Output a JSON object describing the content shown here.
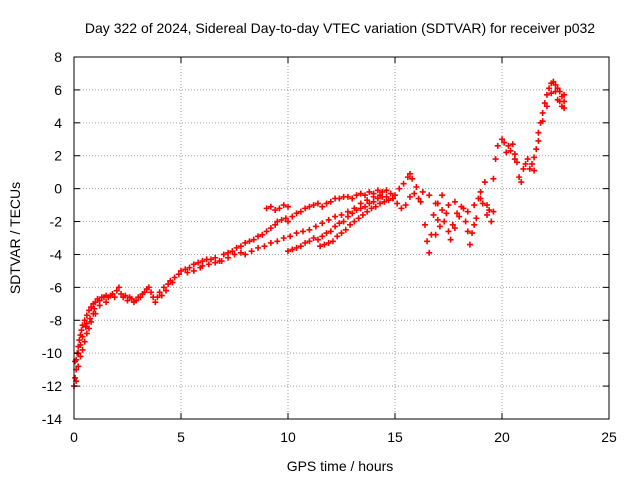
{
  "chart_data": {
    "type": "scatter",
    "title": "Day 322 of 2024, Sidereal Day-to-day VTEC variation (SDTVAR) for receiver p032",
    "xlabel": "GPS time / hours",
    "ylabel": "SDTVAR / TECUs",
    "xlim": [
      0,
      25
    ],
    "ylim": [
      -14,
      8
    ],
    "xticks": [
      0,
      5,
      10,
      15,
      20,
      25
    ],
    "yticks": [
      -14,
      -12,
      -10,
      -8,
      -6,
      -4,
      -2,
      0,
      2,
      4,
      6,
      8
    ],
    "grid": true,
    "legend": "none",
    "marker": "+",
    "series": [
      {
        "color": "#ff0000",
        "points": [
          [
            0.0,
            -12.0
          ],
          [
            0.05,
            -11.5
          ],
          [
            0.1,
            -11.0
          ],
          [
            0.1,
            -10.4
          ],
          [
            0.15,
            -10.0
          ],
          [
            0.2,
            -9.6
          ],
          [
            0.2,
            -10.8
          ],
          [
            0.25,
            -9.2
          ],
          [
            0.3,
            -8.9
          ],
          [
            0.3,
            -10.2
          ],
          [
            0.35,
            -8.6
          ],
          [
            0.4,
            -8.3
          ],
          [
            0.4,
            -9.8
          ],
          [
            0.5,
            -8.0
          ],
          [
            0.5,
            -9.3
          ],
          [
            0.6,
            -7.7
          ],
          [
            0.6,
            -8.8
          ],
          [
            0.7,
            -7.4
          ],
          [
            0.7,
            -8.5
          ],
          [
            0.8,
            -7.2
          ],
          [
            0.8,
            -8.1
          ],
          [
            0.9,
            -7.0
          ],
          [
            1.0,
            -6.9
          ],
          [
            1.0,
            -7.6
          ],
          [
            1.1,
            -6.7
          ],
          [
            1.2,
            -6.8
          ],
          [
            1.3,
            -6.6
          ],
          [
            1.4,
            -6.6
          ],
          [
            1.5,
            -6.5
          ],
          [
            1.6,
            -6.6
          ],
          [
            1.7,
            -6.5
          ],
          [
            1.8,
            -6.4
          ],
          [
            1.9,
            -6.6
          ],
          [
            2.0,
            -6.2
          ],
          [
            2.1,
            -6.0
          ],
          [
            2.2,
            -6.4
          ],
          [
            2.3,
            -6.6
          ],
          [
            2.4,
            -6.5
          ],
          [
            2.5,
            -6.8
          ],
          [
            2.7,
            -6.7
          ],
          [
            2.9,
            -6.8
          ],
          [
            3.0,
            -6.6
          ],
          [
            3.2,
            -6.4
          ],
          [
            3.4,
            -6.1
          ],
          [
            3.5,
            -6.0
          ],
          [
            3.6,
            -6.3
          ],
          [
            3.7,
            -6.6
          ],
          [
            3.8,
            -6.9
          ],
          [
            3.9,
            -6.6
          ],
          [
            4.0,
            -6.3
          ],
          [
            4.2,
            -6.0
          ],
          [
            4.4,
            -5.8
          ],
          [
            4.5,
            -5.6
          ],
          [
            4.7,
            -5.4
          ],
          [
            4.9,
            -5.2
          ],
          [
            5.0,
            -5.0
          ],
          [
            5.2,
            -4.9
          ],
          [
            5.4,
            -4.8
          ],
          [
            5.6,
            -4.6
          ],
          [
            5.8,
            -4.5
          ],
          [
            6.0,
            -4.4
          ],
          [
            6.2,
            -4.3
          ],
          [
            6.4,
            -4.3
          ],
          [
            6.6,
            -4.2
          ],
          [
            6.8,
            -4.4
          ],
          [
            7.0,
            -4.0
          ],
          [
            7.2,
            -3.9
          ],
          [
            7.4,
            -3.8
          ],
          [
            7.6,
            -3.6
          ],
          [
            7.8,
            -3.5
          ],
          [
            8.0,
            -3.3
          ],
          [
            8.2,
            -3.2
          ],
          [
            8.4,
            -3.1
          ],
          [
            8.6,
            -2.9
          ],
          [
            8.8,
            -2.8
          ],
          [
            9.0,
            -2.6
          ],
          [
            9.2,
            -2.4
          ],
          [
            9.4,
            -2.2
          ],
          [
            9.5,
            -2.0
          ],
          [
            9.7,
            -1.9
          ],
          [
            9.9,
            -1.8
          ],
          [
            10.0,
            -2.0
          ],
          [
            10.2,
            -1.7
          ],
          [
            10.4,
            -1.5
          ],
          [
            10.6,
            -1.4
          ],
          [
            10.8,
            -1.2
          ],
          [
            11.0,
            -1.1
          ],
          [
            11.2,
            -1.0
          ],
          [
            11.4,
            -0.9
          ],
          [
            11.6,
            -1.1
          ],
          [
            11.8,
            -0.9
          ],
          [
            12.0,
            -0.8
          ],
          [
            12.2,
            -0.6
          ],
          [
            12.4,
            -0.6
          ],
          [
            12.6,
            -0.5
          ],
          [
            12.8,
            -0.5
          ],
          [
            13.0,
            -0.6
          ],
          [
            13.2,
            -0.4
          ],
          [
            13.4,
            -0.3
          ],
          [
            13.6,
            -0.4
          ],
          [
            13.8,
            -0.2
          ],
          [
            14.0,
            -0.3
          ],
          [
            14.2,
            -0.1
          ],
          [
            14.4,
            -0.2
          ],
          [
            14.6,
            -0.1
          ],
          [
            14.8,
            -0.3
          ],
          [
            15.0,
            -0.4
          ],
          [
            15.2,
            0.0
          ],
          [
            15.4,
            0.3
          ],
          [
            15.6,
            0.7
          ],
          [
            15.7,
            0.9
          ],
          [
            15.8,
            0.6
          ],
          [
            16.0,
            0.1
          ],
          [
            16.2,
            -0.8
          ],
          [
            16.4,
            -2.2
          ],
          [
            16.5,
            -3.2
          ],
          [
            16.6,
            -3.9
          ],
          [
            16.7,
            -2.8
          ],
          [
            16.8,
            -1.6
          ],
          [
            17.0,
            -0.9
          ],
          [
            17.2,
            -0.4
          ],
          [
            17.4,
            -1.5
          ],
          [
            17.5,
            -2.6
          ],
          [
            17.6,
            -3.1
          ],
          [
            17.8,
            -2.4
          ],
          [
            18.0,
            -1.7
          ],
          [
            18.2,
            -1.2
          ],
          [
            18.4,
            -2.6
          ],
          [
            18.5,
            -3.4
          ],
          [
            18.7,
            -2.2
          ],
          [
            18.9,
            -0.6
          ],
          [
            19.0,
            -0.2
          ],
          [
            19.2,
            0.4
          ],
          [
            19.3,
            -1.6
          ],
          [
            19.5,
            -2.0
          ],
          [
            19.6,
            0.6
          ],
          [
            19.7,
            1.8
          ],
          [
            19.8,
            2.6
          ],
          [
            20.0,
            3.0
          ],
          [
            20.1,
            2.8
          ],
          [
            20.2,
            2.2
          ],
          [
            20.3,
            2.6
          ],
          [
            20.5,
            2.7
          ],
          [
            20.6,
            2.1
          ],
          [
            20.7,
            1.6
          ],
          [
            20.8,
            0.7
          ],
          [
            20.9,
            0.4
          ],
          [
            21.0,
            1.2
          ],
          [
            21.2,
            1.8
          ],
          [
            21.4,
            1.5
          ],
          [
            21.5,
            1.1
          ],
          [
            21.6,
            2.4
          ],
          [
            21.7,
            3.4
          ],
          [
            21.8,
            4.0
          ],
          [
            21.9,
            4.6
          ],
          [
            22.0,
            5.2
          ],
          [
            22.1,
            5.7
          ],
          [
            22.2,
            6.1
          ],
          [
            22.3,
            6.4
          ],
          [
            22.4,
            6.5
          ],
          [
            22.5,
            6.3
          ],
          [
            22.6,
            6.1
          ],
          [
            22.7,
            5.9
          ],
          [
            22.8,
            5.6
          ],
          [
            22.9,
            5.3
          ],
          [
            22.9,
            4.9
          ],
          [
            22.8,
            5.0
          ],
          [
            22.6,
            5.4
          ],
          [
            10.0,
            -3.8
          ],
          [
            10.2,
            -3.7
          ],
          [
            10.4,
            -3.6
          ],
          [
            10.6,
            -3.5
          ],
          [
            10.8,
            -3.3
          ],
          [
            11.0,
            -3.2
          ],
          [
            11.2,
            -3.0
          ],
          [
            11.4,
            -3.1
          ],
          [
            11.6,
            -2.9
          ],
          [
            11.8,
            -2.7
          ],
          [
            12.0,
            -2.6
          ],
          [
            12.2,
            -2.3
          ],
          [
            12.4,
            -2.1
          ],
          [
            12.6,
            -2.0
          ],
          [
            12.8,
            -1.7
          ],
          [
            13.0,
            -1.5
          ],
          [
            13.2,
            -1.3
          ],
          [
            13.4,
            -1.2
          ],
          [
            13.6,
            -1.1
          ],
          [
            13.8,
            -0.9
          ],
          [
            14.0,
            -0.8
          ],
          [
            14.2,
            -0.6
          ],
          [
            14.4,
            -0.5
          ],
          [
            11.5,
            -3.5
          ],
          [
            11.7,
            -3.4
          ],
          [
            11.9,
            -3.3
          ],
          [
            12.1,
            -3.2
          ],
          [
            12.3,
            -2.9
          ],
          [
            12.5,
            -2.7
          ],
          [
            12.7,
            -2.5
          ],
          [
            12.9,
            -2.2
          ],
          [
            13.1,
            -2.0
          ],
          [
            13.3,
            -1.8
          ],
          [
            13.5,
            -1.6
          ],
          [
            13.7,
            -1.4
          ],
          [
            13.9,
            -1.2
          ],
          [
            14.1,
            -1.1
          ],
          [
            14.3,
            -0.9
          ],
          [
            14.5,
            -0.8
          ],
          [
            14.7,
            -0.7
          ],
          [
            14.9,
            -0.6
          ],
          [
            9.0,
            -1.2
          ],
          [
            9.2,
            -1.1
          ],
          [
            9.4,
            -1.3
          ],
          [
            9.6,
            -1.2
          ],
          [
            9.8,
            -1.0
          ],
          [
            10.0,
            -1.1
          ],
          [
            8.0,
            -4.0
          ],
          [
            8.3,
            -3.8
          ],
          [
            8.6,
            -3.6
          ],
          [
            8.9,
            -3.5
          ],
          [
            9.2,
            -3.3
          ],
          [
            9.5,
            -3.2
          ],
          [
            9.8,
            -3.0
          ],
          [
            10.1,
            -2.9
          ],
          [
            10.4,
            -2.7
          ],
          [
            10.7,
            -2.6
          ],
          [
            11.0,
            -2.5
          ],
          [
            11.3,
            -2.3
          ],
          [
            11.6,
            -2.1
          ],
          [
            11.9,
            -1.9
          ],
          [
            12.2,
            -1.7
          ],
          [
            12.5,
            -1.6
          ],
          [
            12.8,
            -1.4
          ],
          [
            13.1,
            -1.2
          ],
          [
            13.4,
            -0.9
          ],
          [
            13.7,
            -0.7
          ],
          [
            14.0,
            -0.5
          ],
          [
            14.3,
            -0.4
          ],
          [
            14.6,
            -0.5
          ],
          [
            14.9,
            -0.6
          ],
          [
            15.1,
            -0.9
          ],
          [
            15.3,
            -1.2
          ],
          [
            15.5,
            -1.0
          ],
          [
            15.7,
            -0.5
          ],
          [
            15.9,
            -0.3
          ],
          [
            16.1,
            -0.6
          ],
          [
            16.3,
            -0.2
          ],
          [
            16.6,
            -0.4
          ],
          [
            16.9,
            -0.9
          ],
          [
            17.2,
            -1.3
          ],
          [
            17.5,
            -1.0
          ],
          [
            17.8,
            -0.8
          ],
          [
            18.1,
            -1.1
          ],
          [
            18.4,
            -1.4
          ],
          [
            18.7,
            -1.0
          ],
          [
            19.0,
            -0.6
          ],
          [
            19.3,
            -1.0
          ],
          [
            19.6,
            -1.4
          ],
          [
            6.0,
            -4.7
          ],
          [
            6.3,
            -4.6
          ],
          [
            6.6,
            -4.5
          ],
          [
            6.9,
            -4.4
          ],
          [
            7.2,
            -4.2
          ],
          [
            7.5,
            -4.0
          ],
          [
            7.8,
            -3.9
          ],
          [
            5.3,
            -5.1
          ],
          [
            5.6,
            -5.0
          ],
          [
            5.9,
            -4.8
          ],
          [
            4.6,
            -5.7
          ],
          [
            4.3,
            -6.2
          ],
          [
            4.1,
            -6.5
          ],
          [
            3.3,
            -6.3
          ],
          [
            3.1,
            -6.6
          ],
          [
            2.8,
            -6.9
          ],
          [
            2.6,
            -6.6
          ],
          [
            1.5,
            -6.9
          ],
          [
            1.2,
            -7.1
          ],
          [
            0.9,
            -7.6
          ],
          [
            0.6,
            -8.2
          ],
          [
            0.4,
            -9.0
          ],
          [
            0.2,
            -10.0
          ],
          [
            0.1,
            -11.7
          ],
          [
            0.05,
            -10.5
          ],
          [
            0.3,
            -9.5
          ],
          [
            0.55,
            -8.4
          ],
          [
            0.75,
            -7.9
          ],
          [
            0.95,
            -7.3
          ],
          [
            17.0,
            -1.9
          ],
          [
            17.1,
            -2.3
          ],
          [
            17.3,
            -2.0
          ],
          [
            17.9,
            -1.5
          ],
          [
            18.3,
            -2.0
          ],
          [
            18.6,
            -2.7
          ],
          [
            19.1,
            -0.9
          ],
          [
            19.4,
            -1.3
          ],
          [
            16.9,
            -2.8
          ],
          [
            17.7,
            -2.2
          ],
          [
            18.8,
            -1.8
          ],
          [
            20.4,
            2.3
          ],
          [
            20.6,
            1.8
          ],
          [
            21.1,
            1.5
          ],
          [
            21.3,
            1.2
          ],
          [
            21.5,
            1.9
          ],
          [
            21.7,
            2.9
          ],
          [
            21.9,
            4.1
          ],
          [
            22.1,
            5.0
          ],
          [
            22.3,
            5.8
          ],
          [
            22.5,
            5.9
          ],
          [
            22.7,
            5.3
          ],
          [
            22.9,
            5.7
          ]
        ]
      }
    ]
  }
}
